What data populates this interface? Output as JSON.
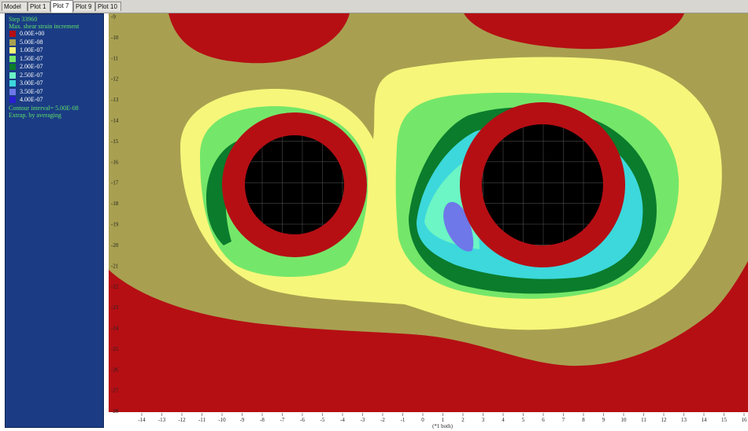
{
  "tabs": [
    {
      "label": "Model",
      "active": false
    },
    {
      "label": "Plot 1",
      "active": false
    },
    {
      "label": "Plot 7",
      "active": true
    },
    {
      "label": "Plot 9",
      "active": false
    },
    {
      "label": "Plot 10",
      "active": false
    }
  ],
  "panel": {
    "step": "Step 33960",
    "title": "Max. shear strain increment",
    "contour_interval": "Contour interval= 5.00E-08",
    "extrap": "Extrap. by averaging"
  },
  "legend": [
    {
      "value": "0.00E+00",
      "color": "#b50f14"
    },
    {
      "value": "5.00E-08",
      "color": "#a8a050"
    },
    {
      "value": "1.00E-07",
      "color": "#f6f67a"
    },
    {
      "value": "1.50E-07",
      "color": "#74e76a"
    },
    {
      "value": "2.00E-07",
      "color": "#0b7c2c"
    },
    {
      "value": "2.50E-07",
      "color": "#6cf5c5"
    },
    {
      "value": "3.00E-07",
      "color": "#3cd8dc"
    },
    {
      "value": "3.50E-07",
      "color": "#6e78e8"
    },
    {
      "value": "4.00E-07",
      "color": "#2a1ecf"
    }
  ],
  "axes": {
    "x_ticks": [
      "-14",
      "-13",
      "-12",
      "-11",
      "-10",
      "-9",
      "-8",
      "-7",
      "-6",
      "-5",
      "-4",
      "-3",
      "-2",
      "-1",
      "0",
      "1",
      "2",
      "3",
      "4",
      "5",
      "6",
      "7",
      "8",
      "9",
      "10",
      "11",
      "12",
      "13",
      "14",
      "15",
      "16"
    ],
    "y_ticks": [
      "-9",
      "-10",
      "-11",
      "-12",
      "-13",
      "-14",
      "-15",
      "-16",
      "-17",
      "-18",
      "-19",
      "-20",
      "-21",
      "-22",
      "-23",
      "-24",
      "-25",
      "-26",
      "-27",
      "-28"
    ],
    "x_unit": "(*1 both)"
  },
  "tunnels": [
    {
      "name": "left-tunnel",
      "center_x": -6,
      "center_y": -18
    },
    {
      "name": "right-tunnel",
      "center_x": 6,
      "center_y": -18
    }
  ]
}
